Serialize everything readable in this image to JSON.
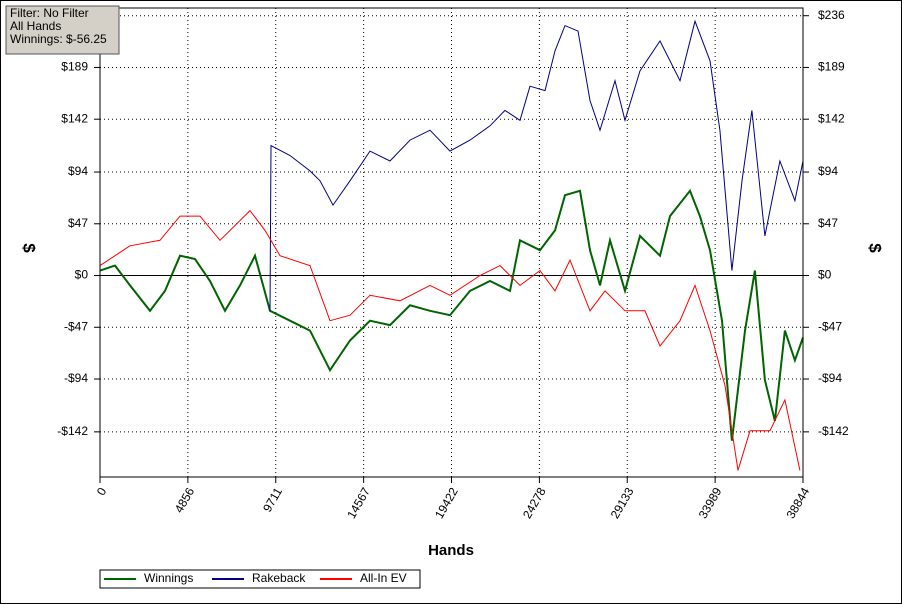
{
  "chart_data": {
    "type": "line",
    "info": [
      "Filter: No Filter",
      "All Hands",
      "Winnings: $-56.25"
    ],
    "xlabel": "Hands",
    "ylabel": "$",
    "y2label": "$",
    "xlim": [
      0,
      38844
    ],
    "xticks": [
      0,
      4856,
      9711,
      14567,
      19422,
      24278,
      29133,
      33989,
      38844
    ],
    "ylim": [
      -183,
      243
    ],
    "yticks": [
      {
        "value": 236,
        "label": "$236"
      },
      {
        "value": 189,
        "label": "$189"
      },
      {
        "value": 142,
        "label": "$142"
      },
      {
        "value": 94,
        "label": "$94"
      },
      {
        "value": 47,
        "label": "$47"
      },
      {
        "value": 0,
        "label": "$0"
      },
      {
        "value": -47,
        "label": "-$47"
      },
      {
        "value": -94,
        "label": "-$94"
      },
      {
        "value": -142,
        "label": "-$142"
      }
    ],
    "y2lim": [
      -183,
      243
    ],
    "y2ticks": [
      {
        "value": 236,
        "label": "$236"
      },
      {
        "value": 189,
        "label": "$189"
      },
      {
        "value": 142,
        "label": "$142"
      },
      {
        "value": 94,
        "label": "$94"
      },
      {
        "value": 47,
        "label": "$47"
      },
      {
        "value": 0,
        "label": "$0"
      },
      {
        "value": -47,
        "label": "-$47"
      },
      {
        "value": -94,
        "label": "-$94"
      },
      {
        "value": -142,
        "label": "-$142"
      }
    ],
    "grid": true,
    "legend": "bottom-left",
    "series": [
      {
        "name": "Winnings",
        "color": "#006400",
        "x": [
          0,
          829,
          1658,
          2763,
          3591,
          4420,
          5249,
          6078,
          6906,
          7735,
          8564,
          9393,
          10498,
          11603,
          12708,
          13813,
          14918,
          16023,
          17128,
          18233,
          19338,
          20443,
          21548,
          22653,
          23205,
          24310,
          25139,
          25691,
          26520,
          27073,
          27625,
          28178,
          29006,
          29835,
          30940,
          31493,
          32598,
          33150,
          33703,
          34366,
          34918,
          35637,
          36189,
          36741,
          37294,
          37846,
          38398,
          38844
        ],
        "values": [
          4.5,
          9,
          -9,
          -32,
          -14,
          18,
          15,
          -5,
          -32,
          -9,
          18,
          -32,
          -41,
          -50,
          -86,
          -59,
          -41,
          -45,
          -27,
          -32,
          -36,
          -14,
          -5,
          -14,
          32,
          23,
          41,
          73,
          77,
          23,
          -9,
          32,
          -14,
          36,
          18,
          54,
          77,
          54,
          23,
          -41,
          -150,
          -50,
          4.5,
          -95,
          -132,
          -50,
          -77,
          -56.25
        ]
      },
      {
        "name": "Rakeback",
        "color": "#000080",
        "x": [
          9393,
          9448,
          10498,
          11603,
          12155,
          12874,
          13813,
          14918,
          16023,
          17128,
          18233,
          19338,
          20443,
          21548,
          22377,
          23205,
          23758,
          24586,
          25139,
          25691,
          26409,
          27073,
          27625,
          28454,
          29006,
          29835,
          30940,
          32045,
          32874,
          33703,
          34255,
          34918,
          35471,
          36023,
          36741,
          37570,
          38398,
          38844
        ],
        "values": [
          -32,
          118,
          109,
          95,
          86,
          64,
          86,
          113,
          104,
          123,
          132,
          113,
          123,
          136,
          150,
          141,
          172,
          168,
          204,
          227,
          222,
          159,
          132,
          177,
          141,
          186,
          213,
          177,
          231,
          195,
          132,
          4.5,
          86,
          150,
          36,
          104,
          68,
          104
        ]
      },
      {
        "name": "All-In EV",
        "color": "#ff0000",
        "x": [
          0,
          1658,
          3315,
          4420,
          5525,
          6630,
          8288,
          9117,
          9946,
          11603,
          12708,
          13813,
          14918,
          16575,
          18233,
          19338,
          20995,
          22100,
          23205,
          24310,
          25139,
          25968,
          27073,
          27901,
          29006,
          30111,
          30940,
          32045,
          32874,
          33703,
          34532,
          35250,
          35913,
          37018,
          37846,
          38674
        ],
        "values": [
          9,
          27,
          32,
          54,
          54,
          32,
          59,
          41,
          18,
          9,
          -41,
          -36,
          -18,
          -23,
          -9,
          -18,
          0,
          9,
          -9,
          4.5,
          -14,
          14,
          -32,
          -14,
          -32,
          -32,
          -64,
          -41,
          -9,
          -50,
          -100,
          -177,
          -141,
          -141,
          -113,
          -177
        ]
      }
    ]
  }
}
